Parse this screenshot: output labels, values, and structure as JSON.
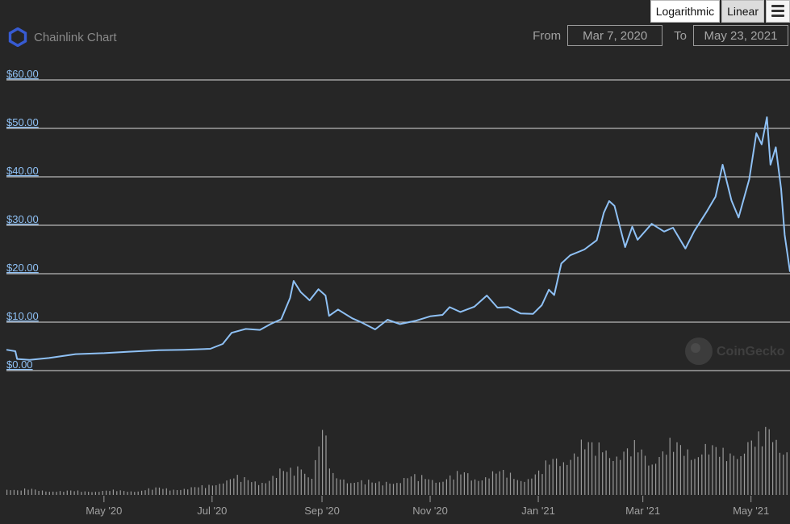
{
  "header": {
    "title": "Chainlink Chart",
    "from_label": "From",
    "to_label": "To",
    "from_date": "Mar 7, 2020",
    "to_date": "May 23, 2021",
    "scale_options": [
      "Logarithmic",
      "Linear"
    ],
    "watermark": "CoinGecko"
  },
  "colors": {
    "background": "#262626",
    "line": "#8fc1f5",
    "grid": "#b8b8b8",
    "volume": "#9a9a9a",
    "logo": "#375bd2"
  },
  "chart_data": {
    "type": "line",
    "y_tick_labels": [
      "$0.00",
      "$10.00",
      "$20.00",
      "$30.00",
      "$40.00",
      "$50.00",
      "$60.00"
    ],
    "y_ticks": [
      0,
      10,
      20,
      30,
      40,
      50,
      60
    ],
    "ylim": [
      0,
      60
    ],
    "x_tick_labels": [
      "May '20",
      "Jul '20",
      "Sep '20",
      "Nov '20",
      "Jan '21",
      "Mar '21",
      "May '21"
    ],
    "x_tick_dates": [
      "2020-05-01",
      "2020-07-01",
      "2020-09-01",
      "2020-11-01",
      "2021-01-01",
      "2021-03-01",
      "2021-05-01"
    ],
    "xlim": [
      "2020-03-07",
      "2021-05-23"
    ],
    "grid": true,
    "series": [
      {
        "x": [
          "2020-03-07",
          "2020-03-12",
          "2020-03-13",
          "2020-03-20",
          "2020-03-31",
          "2020-04-15",
          "2020-05-01",
          "2020-05-15",
          "2020-06-01",
          "2020-06-15",
          "2020-06-30",
          "2020-07-07",
          "2020-07-12",
          "2020-07-20",
          "2020-07-28",
          "2020-08-03",
          "2020-08-09",
          "2020-08-14",
          "2020-08-16",
          "2020-08-20",
          "2020-08-25",
          "2020-08-30",
          "2020-09-03",
          "2020-09-05",
          "2020-09-10",
          "2020-09-18",
          "2020-09-23",
          "2020-10-01",
          "2020-10-08",
          "2020-10-15",
          "2020-10-24",
          "2020-11-01",
          "2020-11-08",
          "2020-11-12",
          "2020-11-18",
          "2020-11-26",
          "2020-12-03",
          "2020-12-09",
          "2020-12-15",
          "2020-12-22",
          "2020-12-29",
          "2021-01-03",
          "2021-01-07",
          "2021-01-10",
          "2021-01-14",
          "2021-01-19",
          "2021-01-27",
          "2021-02-03",
          "2021-02-07",
          "2021-02-10",
          "2021-02-13",
          "2021-02-19",
          "2021-02-23",
          "2021-02-26",
          "2021-03-06",
          "2021-03-13",
          "2021-03-18",
          "2021-03-25",
          "2021-03-30",
          "2021-04-06",
          "2021-04-11",
          "2021-04-15",
          "2021-04-20",
          "2021-04-24",
          "2021-04-30",
          "2021-05-04",
          "2021-05-07",
          "2021-05-10",
          "2021-05-12",
          "2021-05-15",
          "2021-05-18",
          "2021-05-20",
          "2021-05-23"
        ],
        "y": [
          4.3,
          4.0,
          2.4,
          2.2,
          2.6,
          3.4,
          3.6,
          3.9,
          4.2,
          4.3,
          4.5,
          5.5,
          7.8,
          8.6,
          8.4,
          9.6,
          10.6,
          15.0,
          18.5,
          16.2,
          14.5,
          16.8,
          15.5,
          11.3,
          12.6,
          10.8,
          10.0,
          8.5,
          10.5,
          9.6,
          10.3,
          11.2,
          11.5,
          13.1,
          12.1,
          13.2,
          15.5,
          13.0,
          13.1,
          11.8,
          11.7,
          13.5,
          16.7,
          15.6,
          22.1,
          23.8,
          25.0,
          26.9,
          32.6,
          35.0,
          34.0,
          25.5,
          29.7,
          27.0,
          30.3,
          28.7,
          29.5,
          25.2,
          28.8,
          32.8,
          35.9,
          42.5,
          35.1,
          31.6,
          39.5,
          49.0,
          46.7,
          52.3,
          42.5,
          46.1,
          37.5,
          28.0,
          20.4
        ]
      }
    ],
    "volume": [
      1.5,
      1.0,
      1.3,
      1.0,
      0.9,
      0.8,
      0.9,
      0.8,
      0.8,
      0.9,
      1.0,
      0.8,
      0.9,
      1.3,
      1.5,
      1.2,
      1.4,
      1.6,
      1.8,
      2.2,
      3.5,
      4.0,
      3.2,
      2.7,
      3.6,
      5.2,
      5.0,
      6.3,
      4.5,
      14.7,
      3.8,
      3.4,
      3.3,
      3.0,
      2.5,
      2.9,
      3.3,
      4.0,
      3.8,
      3.6,
      3.4,
      4.2,
      4.8,
      3.6,
      4.4,
      5.0,
      4.6,
      3.5,
      4.0,
      5.0,
      7.5,
      8.0,
      9.5,
      11.0,
      10.0,
      11.5,
      8.8,
      9.2,
      10.5,
      8.0,
      9.3,
      10.8,
      10.0,
      9.5,
      11.2,
      9.7,
      8.6,
      9.8,
      12.0,
      11.5,
      14.0,
      12.0,
      10.5
    ]
  }
}
